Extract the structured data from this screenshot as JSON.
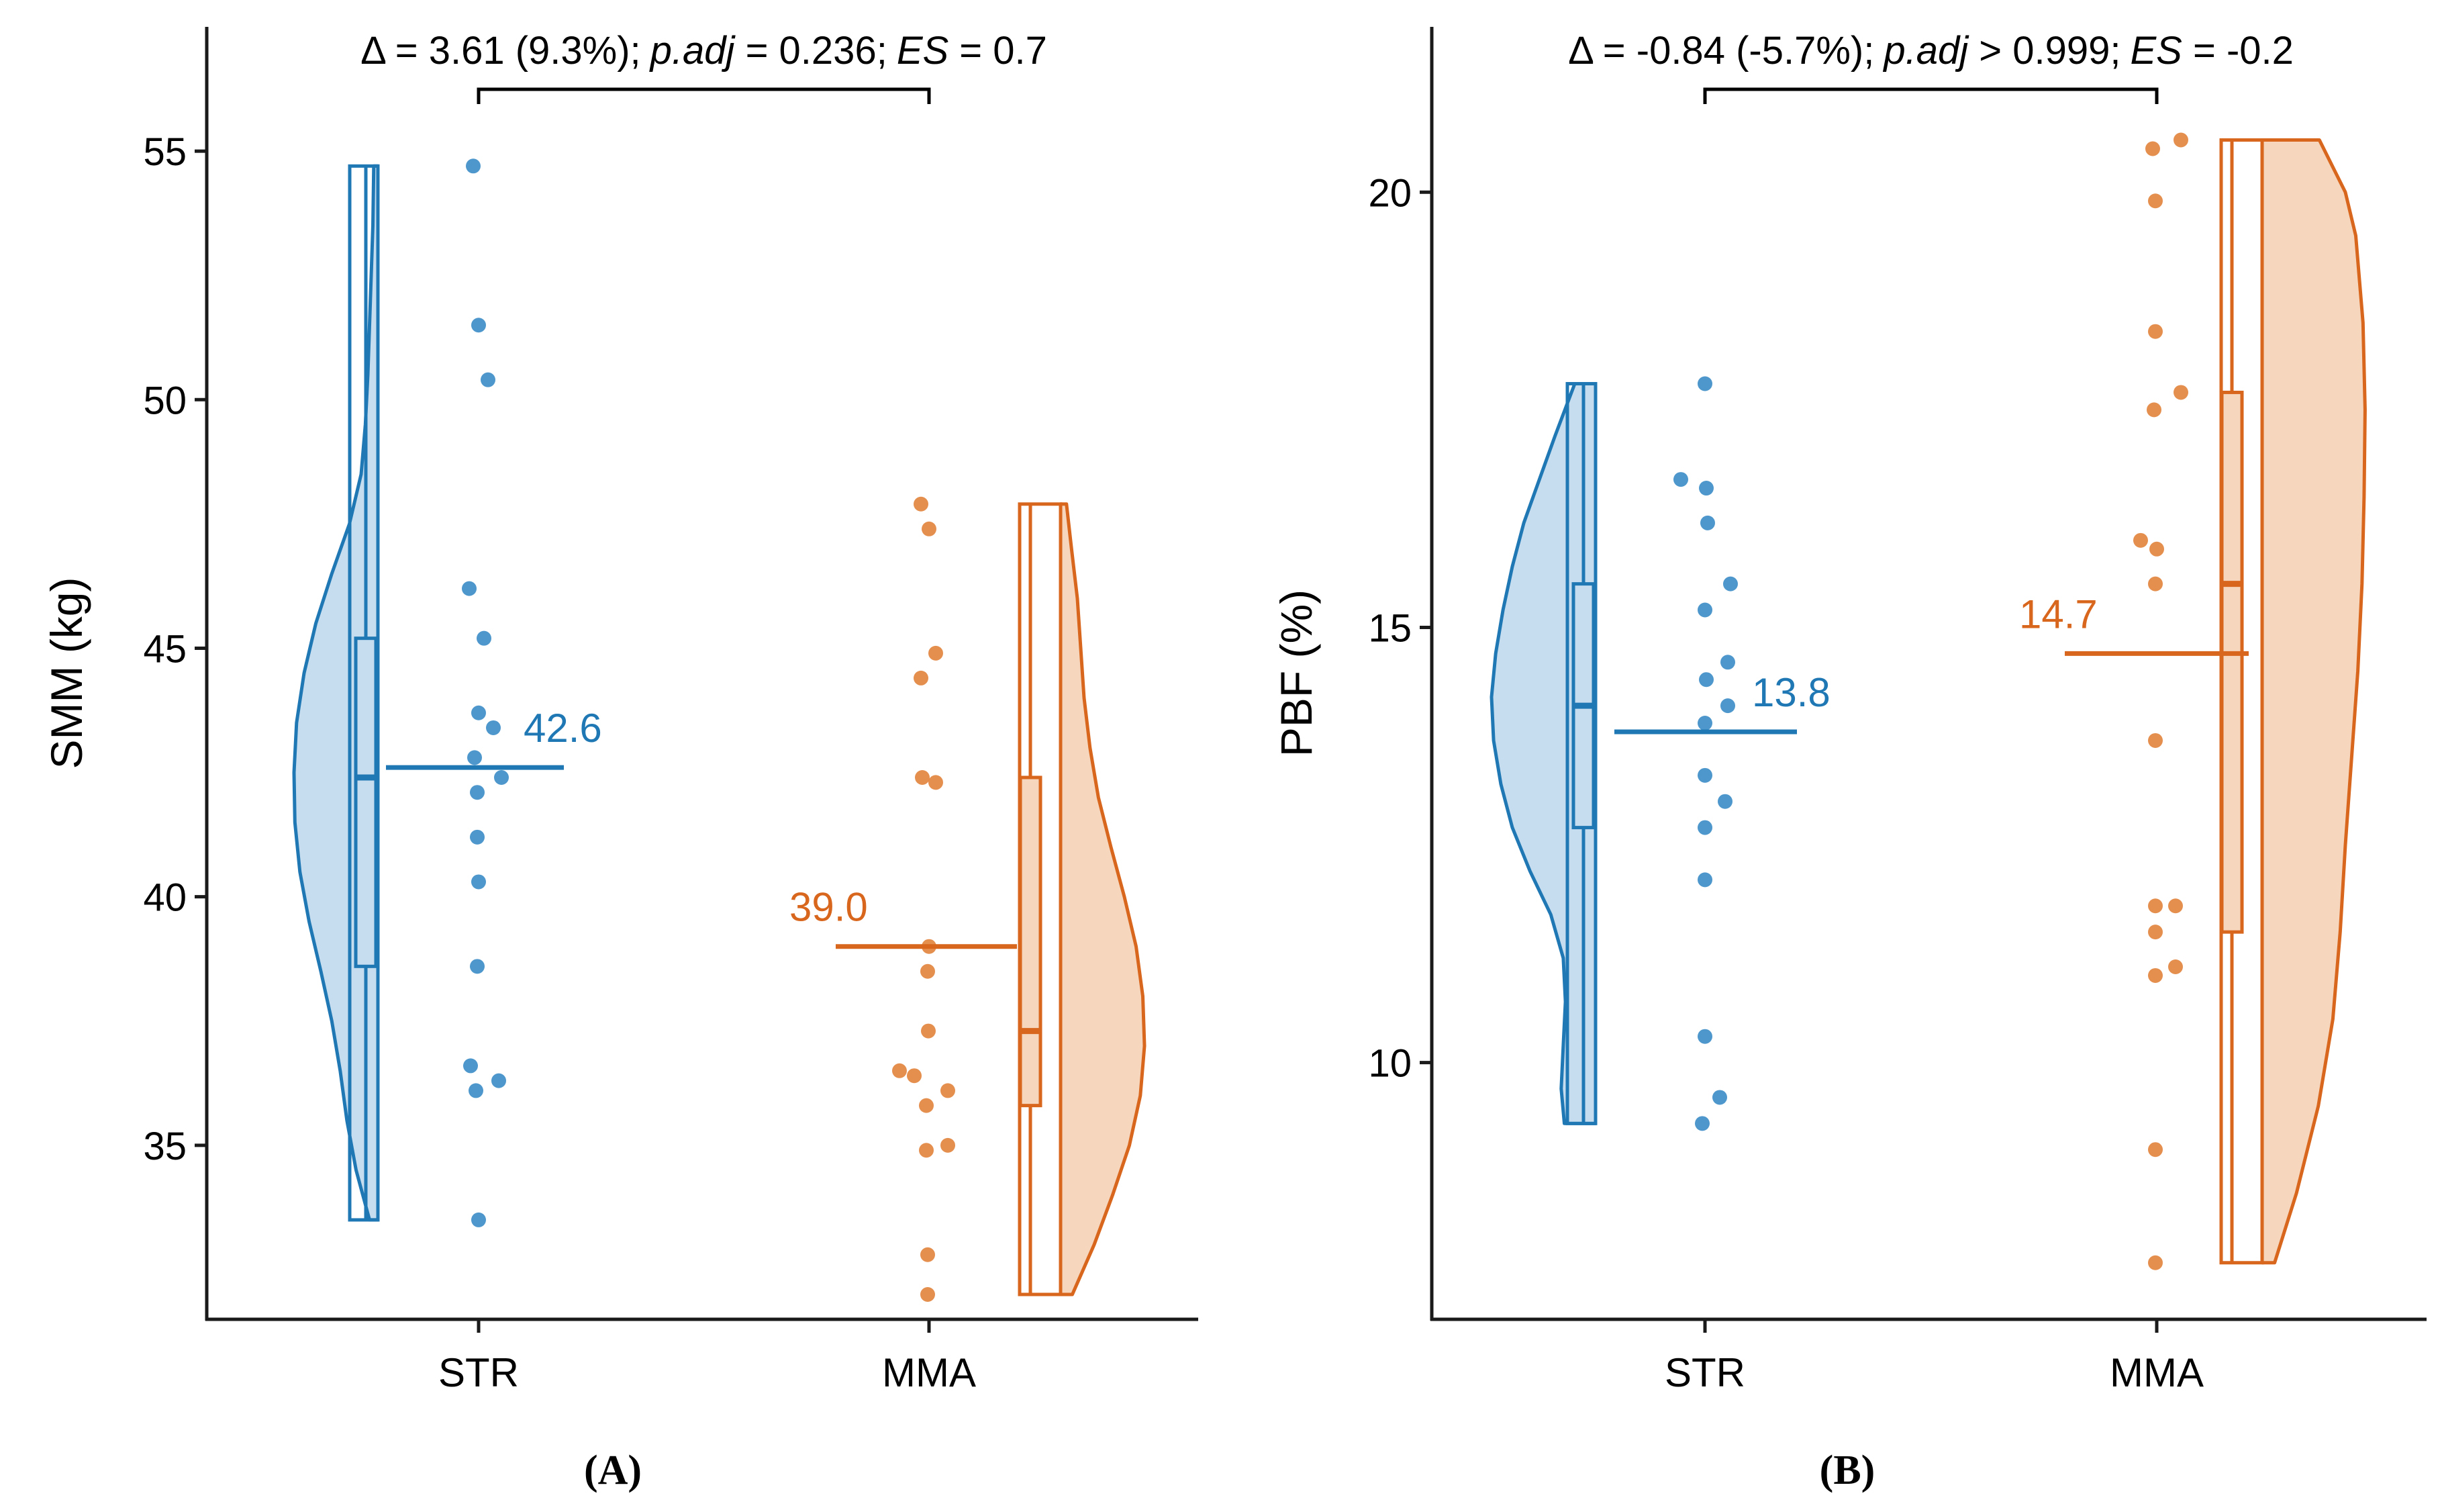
{
  "figure": {
    "colors": {
      "str": "#1f78b4",
      "str_fill": "#c6dcef",
      "mma": "#d8661d",
      "mma_fill": "#f6d6bd",
      "axis": "#1a1a1a",
      "point_str": "#3a8cc6",
      "point_mma": "#e2833c"
    }
  },
  "chart_data": [
    {
      "type": "raincloud",
      "panel_label": "(A)",
      "ylabel": "SMM (kg)",
      "xlabel": "",
      "ylim": [
        31.5,
        57.5
      ],
      "yticks": [
        35,
        40,
        45,
        50,
        55
      ],
      "categories": [
        "STR",
        "MMA"
      ],
      "annotation": {
        "delta": "Δ = 3.61 (9.3%);",
        "padj_label": "p.adj",
        "padj_value": " = 0.236;",
        "es_label": "ES",
        "es_value": " = 0.7"
      },
      "groups": [
        {
          "name": "STR",
          "mean": 42.6,
          "mean_label": "42.6",
          "box": {
            "q1": 38.6,
            "median": 42.4,
            "q3": 45.2,
            "min": 33.5,
            "max": 54.7
          },
          "density": [
            [
              33.5,
              0.1
            ],
            [
              34.5,
              0.26
            ],
            [
              35.5,
              0.37
            ],
            [
              36.5,
              0.45
            ],
            [
              37.5,
              0.55
            ],
            [
              38.5,
              0.68
            ],
            [
              39.5,
              0.82
            ],
            [
              40.5,
              0.93
            ],
            [
              41.5,
              0.99
            ],
            [
              42.5,
              1.0
            ],
            [
              43.5,
              0.97
            ],
            [
              44.5,
              0.88
            ],
            [
              45.5,
              0.74
            ],
            [
              46.5,
              0.55
            ],
            [
              47.5,
              0.34
            ],
            [
              48.5,
              0.2
            ],
            [
              49.5,
              0.15
            ],
            [
              50.5,
              0.12
            ],
            [
              51.5,
              0.1
            ],
            [
              52.5,
              0.08
            ],
            [
              53.5,
              0.06
            ],
            [
              54.7,
              0.05
            ]
          ],
          "points": [
            54.7,
            51.5,
            50.4,
            46.2,
            45.2,
            43.7,
            43.4,
            42.8,
            42.4,
            42.1,
            41.2,
            40.3,
            38.6,
            36.6,
            36.3,
            36.1,
            33.5
          ]
        },
        {
          "name": "MMA",
          "mean": 39.0,
          "mean_label": "39.0",
          "box": {
            "q1": 35.8,
            "median": 37.3,
            "q3": 42.4,
            "min": 32.0,
            "max": 47.9
          },
          "density": [
            [
              32.0,
              0.14
            ],
            [
              33.0,
              0.4
            ],
            [
              34.0,
              0.62
            ],
            [
              35.0,
              0.82
            ],
            [
              36.0,
              0.95
            ],
            [
              37.0,
              1.0
            ],
            [
              38.0,
              0.98
            ],
            [
              39.0,
              0.9
            ],
            [
              40.0,
              0.76
            ],
            [
              41.0,
              0.6
            ],
            [
              42.0,
              0.45
            ],
            [
              43.0,
              0.35
            ],
            [
              44.0,
              0.28
            ],
            [
              45.0,
              0.24
            ],
            [
              46.0,
              0.2
            ],
            [
              47.0,
              0.13
            ],
            [
              47.9,
              0.07
            ]
          ],
          "points": [
            47.9,
            47.4,
            44.9,
            44.4,
            42.4,
            42.3,
            39.0,
            38.5,
            37.3,
            36.5,
            36.4,
            36.1,
            35.8,
            35.0,
            34.9,
            32.8,
            32.0
          ]
        }
      ]
    },
    {
      "type": "raincloud",
      "panel_label": "(B)",
      "ylabel": "PBF (%)",
      "xlabel": "",
      "ylim": [
        7.05,
        21.9
      ],
      "yticks": [
        10,
        15,
        20
      ],
      "categories": [
        "STR",
        "MMA"
      ],
      "annotation": {
        "delta": "Δ = -0.84 (-5.7%);",
        "padj_label": "p.adj",
        "padj_value": " > 0.999;",
        "es_label": "ES",
        "es_value": " = -0.2"
      },
      "groups": [
        {
          "name": "STR",
          "mean": 13.8,
          "mean_label": "13.8",
          "box": {
            "q1": 12.7,
            "median": 14.1,
            "q3": 15.5,
            "min": 9.3,
            "max": 17.8
          },
          "density": [
            [
              9.3,
              0.3
            ],
            [
              9.7,
              0.33
            ],
            [
              10.2,
              0.31
            ],
            [
              10.7,
              0.29
            ],
            [
              11.2,
              0.31
            ],
            [
              11.7,
              0.43
            ],
            [
              12.2,
              0.63
            ],
            [
              12.7,
              0.8
            ],
            [
              13.2,
              0.91
            ],
            [
              13.7,
              0.98
            ],
            [
              14.2,
              1.0
            ],
            [
              14.7,
              0.96
            ],
            [
              15.2,
              0.89
            ],
            [
              15.7,
              0.8
            ],
            [
              16.2,
              0.69
            ],
            [
              16.7,
              0.54
            ],
            [
              17.2,
              0.39
            ],
            [
              17.8,
              0.2
            ]
          ],
          "points": [
            17.8,
            16.7,
            16.6,
            16.2,
            15.5,
            15.2,
            14.6,
            14.4,
            14.1,
            13.9,
            13.3,
            13.0,
            12.7,
            12.1,
            10.3,
            9.6,
            9.3
          ]
        },
        {
          "name": "MMA",
          "mean": 14.7,
          "mean_label": "14.7",
          "box": {
            "q1": 11.5,
            "median": 15.5,
            "q3": 17.7,
            "min": 7.7,
            "max": 20.6
          },
          "density": [
            [
              7.7,
              0.12
            ],
            [
              8.5,
              0.33
            ],
            [
              9.5,
              0.54
            ],
            [
              10.5,
              0.68
            ],
            [
              11.5,
              0.75
            ],
            [
              12.5,
              0.8
            ],
            [
              13.5,
              0.86
            ],
            [
              14.5,
              0.92
            ],
            [
              15.5,
              0.96
            ],
            [
              16.5,
              0.98
            ],
            [
              17.5,
              0.99
            ],
            [
              18.5,
              0.97
            ],
            [
              19.5,
              0.9
            ],
            [
              20.0,
              0.8
            ],
            [
              20.6,
              0.55
            ]
          ],
          "points": [
            20.6,
            20.5,
            19.9,
            18.4,
            17.7,
            17.5,
            16.0,
            15.9,
            15.5,
            13.7,
            11.8,
            11.8,
            11.5,
            11.1,
            11.0,
            9.0,
            7.7
          ]
        }
      ]
    }
  ]
}
